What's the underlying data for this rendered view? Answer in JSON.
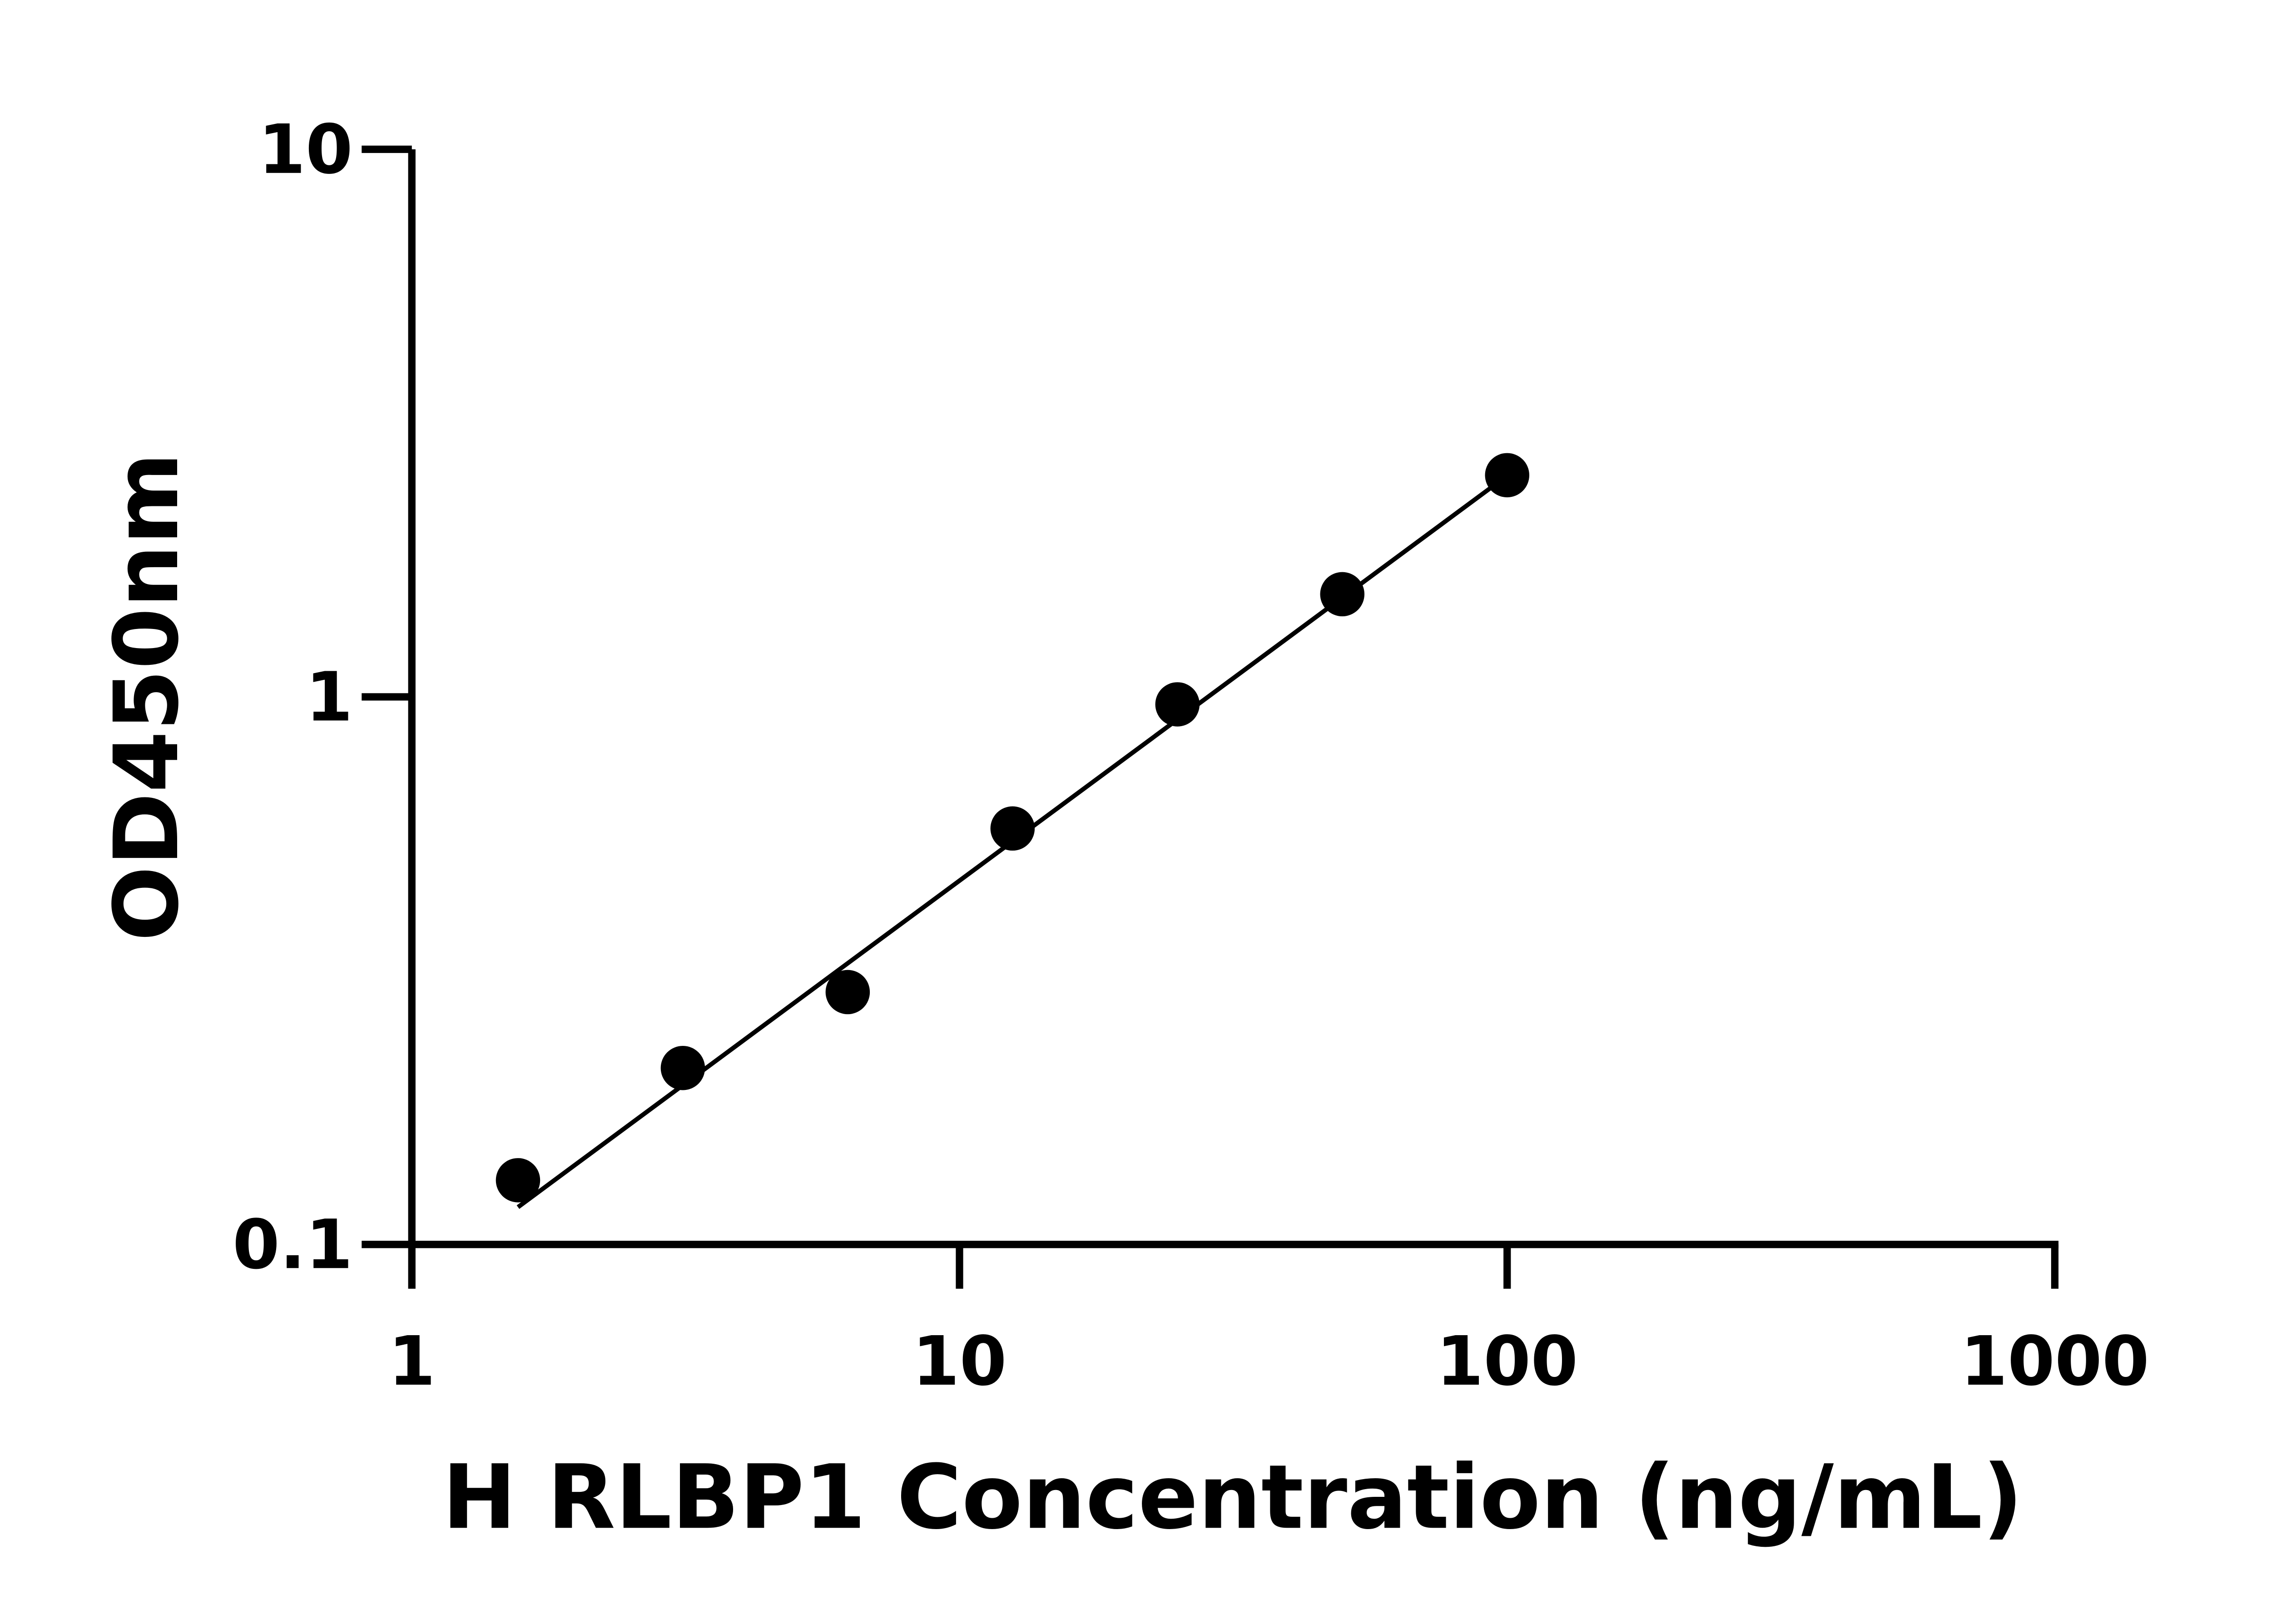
{
  "chart_data": {
    "type": "scatter",
    "xlabel": "H RLBP1 Concentration (ng/mL)",
    "ylabel": "OD450nm",
    "xscale": "log",
    "yscale": "log",
    "xlim": [
      1,
      1000
    ],
    "ylim": [
      0.1,
      10
    ],
    "xticks": [
      {
        "value": 1,
        "label": "1"
      },
      {
        "value": 10,
        "label": "10"
      },
      {
        "value": 100,
        "label": "100"
      },
      {
        "value": 1000,
        "label": "1000"
      }
    ],
    "yticks": [
      {
        "value": 0.1,
        "label": "0.1"
      },
      {
        "value": 1,
        "label": "1"
      },
      {
        "value": 10,
        "label": "10"
      }
    ],
    "grid": false,
    "series": [
      {
        "marker": "circle",
        "color": "#000000",
        "points": [
          {
            "x": 1.5625,
            "y": 0.131
          },
          {
            "x": 3.125,
            "y": 0.21
          },
          {
            "x": 6.25,
            "y": 0.289
          },
          {
            "x": 12.5,
            "y": 0.575
          },
          {
            "x": 25,
            "y": 0.969
          },
          {
            "x": 50,
            "y": 1.54
          },
          {
            "x": 100,
            "y": 2.54
          }
        ]
      }
    ],
    "fit_line": {
      "color": "#000000",
      "points": [
        {
          "x": 1.5625,
          "y": 0.117
        },
        {
          "x": 93.4,
          "y": 2.41
        }
      ]
    }
  }
}
